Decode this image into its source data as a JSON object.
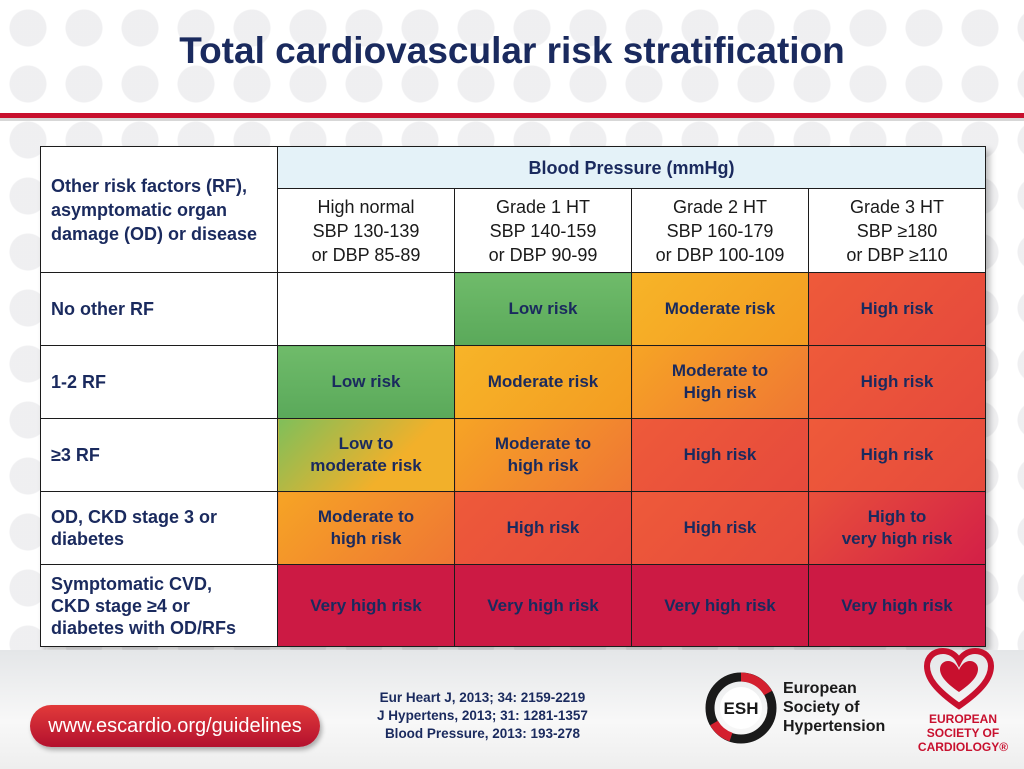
{
  "title": "Total cardiovascular risk stratification",
  "table": {
    "corner_label": "Other risk factors (RF), asymptomatic organ damage (OD) or disease",
    "bp_header": "Blood Pressure (mmHg)",
    "grades": [
      "High normal\nSBP 130-139\nor DBP 85-89",
      "Grade 1 HT\nSBP 140-159\nor DBP 90-99",
      "Grade 2 HT\nSBP 160-179\nor DBP 100-109",
      "Grade 3 HT\nSBP ≥180\nor DBP ≥110"
    ],
    "rows": [
      {
        "label": "No other RF",
        "cells": [
          "",
          "Low risk",
          "Moderate risk",
          "High risk"
        ]
      },
      {
        "label": "1-2 RF",
        "cells": [
          "Low risk",
          "Moderate risk",
          "Moderate to\nHigh risk",
          "High risk"
        ]
      },
      {
        "label": "≥3 RF",
        "cells": [
          "Low to\nmoderate risk",
          "Moderate to\nhigh risk",
          "High risk",
          "High risk"
        ]
      },
      {
        "label": "OD, CKD stage 3 or\ndiabetes",
        "cells": [
          "Moderate to\nhigh risk",
          "High risk",
          "High risk",
          "High to\nvery high risk"
        ]
      },
      {
        "label": "Symptomatic CVD,\nCKD stage ≥4 or\ndiabetes with OD/RFs",
        "cells": [
          "Very high risk",
          "Very high risk",
          "Very high risk",
          "Very high risk"
        ]
      }
    ]
  },
  "colors": {
    "title": "#1a2a5e",
    "accent_red": "#c8102e",
    "low": "#5aa95a",
    "moderate": "#f39c22",
    "high": "#e64a3c",
    "very_high": "#cc1a44"
  },
  "footer": {
    "url": "www.escardio.org/guidelines",
    "references": [
      "Eur Heart J, 2013; 34: 2159-2219",
      "J Hypertens, 2013; 31: 1281-1357",
      "Blood Pressure, 2013: 193-278"
    ],
    "esh_abbr": "ESH",
    "esh_name": "European\nSociety of\nHypertension",
    "esc_name": "EUROPEAN\nSOCIETY OF\nCARDIOLOGY®"
  },
  "icons": [
    "esh-logo-icon",
    "esc-heart-logo-icon"
  ]
}
